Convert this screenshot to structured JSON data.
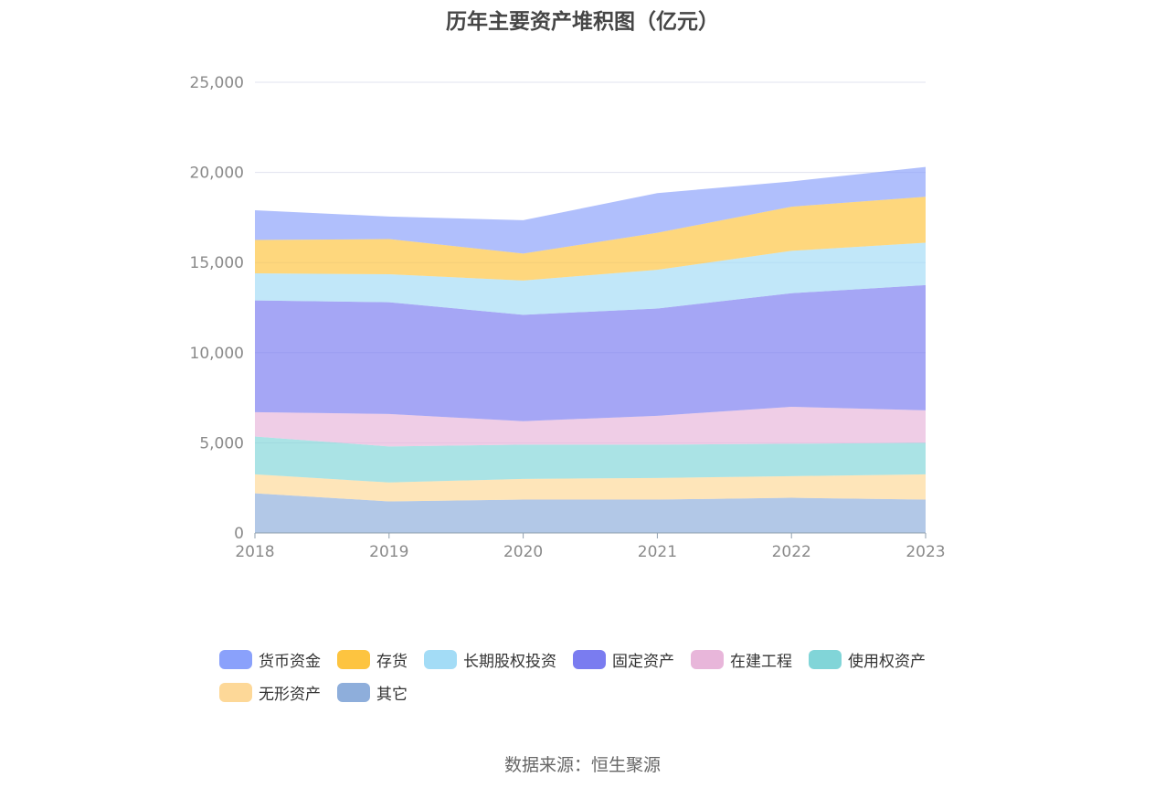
{
  "title": "历年主要资产堆积图（亿元）",
  "source": "数据来源：恒生聚源",
  "chart_data": {
    "type": "area",
    "stacked": true,
    "x": [
      "2018",
      "2019",
      "2020",
      "2021",
      "2022",
      "2023"
    ],
    "ylim": [
      0,
      25000
    ],
    "yticks": [
      0,
      5000,
      10000,
      15000,
      20000,
      25000
    ],
    "ytick_labels": [
      "0",
      "5,000",
      "10,000",
      "15,000",
      "20,000",
      "25,000"
    ],
    "grid": true,
    "legend_position": "bottom",
    "series": [
      {
        "name": "其它",
        "color": "#8eaedb",
        "values": [
          2200,
          1750,
          1850,
          1850,
          1950,
          1850
        ]
      },
      {
        "name": "无形资产",
        "color": "#fdd898",
        "values": [
          1050,
          1050,
          1150,
          1200,
          1200,
          1400
        ]
      },
      {
        "name": "使用权资产",
        "color": "#81d5d8",
        "values": [
          2100,
          2000,
          1900,
          1850,
          1800,
          1750
        ]
      },
      {
        "name": "在建工程",
        "color": "#e8b6da",
        "values": [
          1350,
          1800,
          1300,
          1600,
          2050,
          1800
        ]
      },
      {
        "name": "固定资产",
        "color": "#7a7cf0",
        "values": [
          6200,
          6200,
          5900,
          5950,
          6300,
          6950
        ]
      },
      {
        "name": "长期股权投资",
        "color": "#a3dcf6",
        "values": [
          1500,
          1550,
          1900,
          2150,
          2350,
          2350
        ]
      },
      {
        "name": "存货",
        "color": "#fdc440",
        "values": [
          1850,
          1950,
          1500,
          2050,
          2450,
          2550
        ]
      },
      {
        "name": "货币资金",
        "color": "#8aa1fb",
        "values": [
          1650,
          1250,
          1850,
          2200,
          1400,
          1650
        ]
      }
    ],
    "legend_order": [
      "货币资金",
      "存货",
      "长期股权投资",
      "固定资产",
      "在建工程",
      "使用权资产",
      "无形资产",
      "其它"
    ]
  }
}
